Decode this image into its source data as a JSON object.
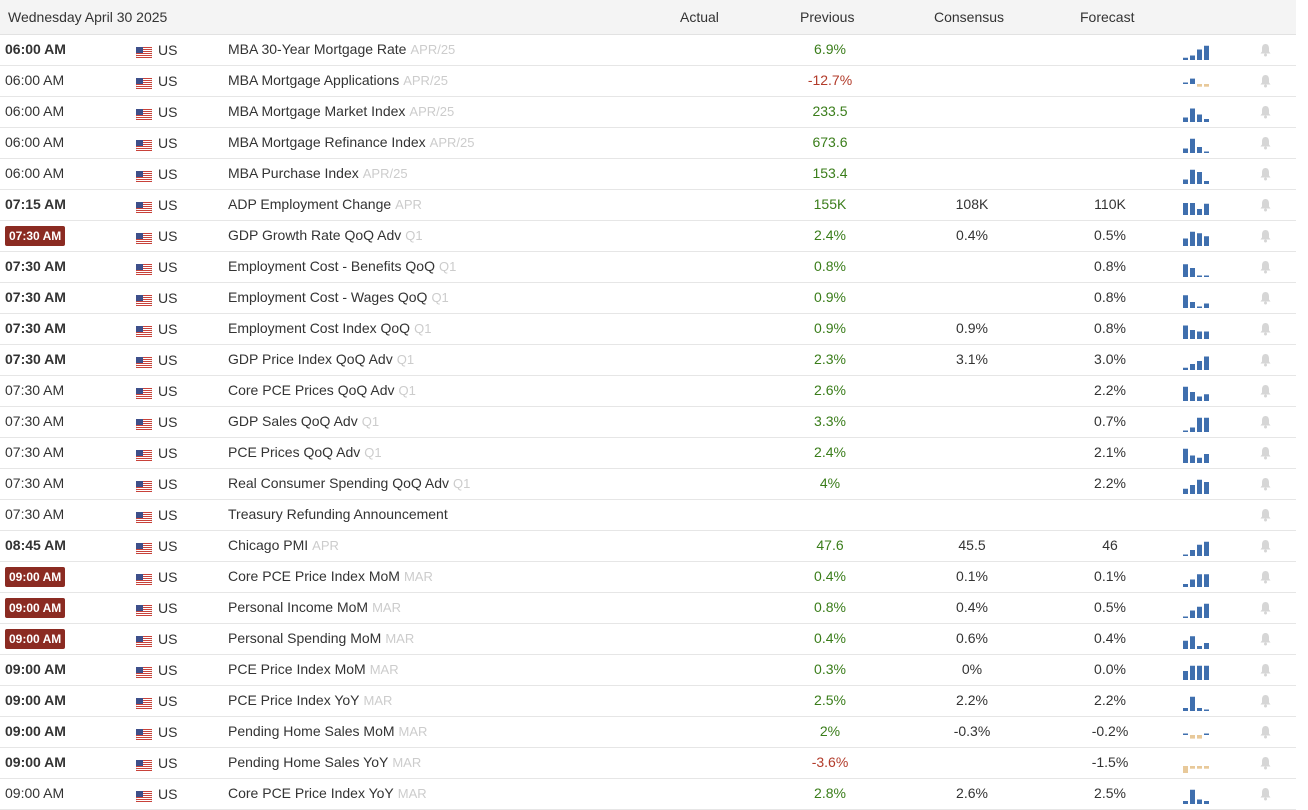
{
  "header": {
    "date": "Wednesday April 30 2025",
    "col_actual": "Actual",
    "col_previous": "Previous",
    "col_consensus": "Consensus",
    "col_forecast": "Forecast"
  },
  "colors": {
    "positive": "#3a7d1a",
    "negative": "#b23b2a",
    "badge": "#8b2b22",
    "spark_blue": "#3f6fae",
    "spark_tan": "#e8c99a"
  },
  "rows": [
    {
      "time": "06:00 AM",
      "style": "bold",
      "country": "US",
      "event": "MBA 30-Year Mortgage Rate",
      "ref": "APR/25",
      "actual": "",
      "previous": "6.9%",
      "prev_dir": "pos",
      "consensus": "",
      "forecast": "",
      "spark": [
        0.15,
        0.3,
        0.7,
        0.95
      ]
    },
    {
      "time": "06:00 AM",
      "style": "normal",
      "country": "US",
      "event": "MBA Mortgage Applications",
      "ref": "APR/25",
      "actual": "",
      "previous": "-12.7%",
      "prev_dir": "neg",
      "consensus": "",
      "forecast": "",
      "spark": [
        0.1,
        0.6,
        -0.3,
        -0.3
      ]
    },
    {
      "time": "06:00 AM",
      "style": "normal",
      "country": "US",
      "event": "MBA Mortgage Market Index",
      "ref": "APR/25",
      "actual": "",
      "previous": "233.5",
      "prev_dir": "pos",
      "consensus": "",
      "forecast": "",
      "spark": [
        0.3,
        0.9,
        0.5,
        0.2
      ]
    },
    {
      "time": "06:00 AM",
      "style": "normal",
      "country": "US",
      "event": "MBA Mortgage Refinance Index",
      "ref": "APR/25",
      "actual": "",
      "previous": "673.6",
      "prev_dir": "pos",
      "consensus": "",
      "forecast": "",
      "spark": [
        0.3,
        0.95,
        0.4,
        0.1
      ]
    },
    {
      "time": "06:00 AM",
      "style": "normal",
      "country": "US",
      "event": "MBA Purchase Index",
      "ref": "APR/25",
      "actual": "",
      "previous": "153.4",
      "prev_dir": "pos",
      "consensus": "",
      "forecast": "",
      "spark": [
        0.3,
        0.95,
        0.8,
        0.2
      ]
    },
    {
      "time": "07:15 AM",
      "style": "bold",
      "country": "US",
      "event": "ADP Employment Change",
      "ref": "APR",
      "actual": "",
      "previous": "155K",
      "prev_dir": "pos",
      "consensus": "108K",
      "forecast": "110K",
      "spark": [
        0.8,
        0.8,
        0.4,
        0.75
      ]
    },
    {
      "time": "07:30 AM",
      "style": "badge",
      "country": "US",
      "event": "GDP Growth Rate QoQ Adv",
      "ref": "Q1",
      "actual": "",
      "previous": "2.4%",
      "prev_dir": "pos",
      "consensus": "0.4%",
      "forecast": "0.5%",
      "spark": [
        0.5,
        0.95,
        0.85,
        0.65
      ]
    },
    {
      "time": "07:30 AM",
      "style": "bold",
      "country": "US",
      "event": "Employment Cost - Benefits QoQ",
      "ref": "Q1",
      "actual": "",
      "previous": "0.8%",
      "prev_dir": "pos",
      "consensus": "",
      "forecast": "0.8%",
      "spark": [
        0.85,
        0.6,
        0.1,
        0.1
      ]
    },
    {
      "time": "07:30 AM",
      "style": "bold",
      "country": "US",
      "event": "Employment Cost - Wages QoQ",
      "ref": "Q1",
      "actual": "",
      "previous": "0.9%",
      "prev_dir": "pos",
      "consensus": "",
      "forecast": "0.8%",
      "spark": [
        0.85,
        0.4,
        0.1,
        0.3
      ]
    },
    {
      "time": "07:30 AM",
      "style": "bold",
      "country": "US",
      "event": "Employment Cost Index QoQ",
      "ref": "Q1",
      "actual": "",
      "previous": "0.9%",
      "prev_dir": "pos",
      "consensus": "0.9%",
      "forecast": "0.8%",
      "spark": [
        0.9,
        0.6,
        0.5,
        0.5
      ]
    },
    {
      "time": "07:30 AM",
      "style": "bold",
      "country": "US",
      "event": "GDP Price Index QoQ Adv",
      "ref": "Q1",
      "actual": "",
      "previous": "2.3%",
      "prev_dir": "pos",
      "consensus": "3.1%",
      "forecast": "3.0%",
      "spark": [
        0.15,
        0.4,
        0.6,
        0.9
      ]
    },
    {
      "time": "07:30 AM",
      "style": "normal",
      "country": "US",
      "event": "Core PCE Prices QoQ Adv",
      "ref": "Q1",
      "actual": "",
      "previous": "2.6%",
      "prev_dir": "pos",
      "consensus": "",
      "forecast": "2.2%",
      "spark": [
        0.95,
        0.6,
        0.3,
        0.45
      ]
    },
    {
      "time": "07:30 AM",
      "style": "normal",
      "country": "US",
      "event": "GDP Sales QoQ Adv",
      "ref": "Q1",
      "actual": "",
      "previous": "3.3%",
      "prev_dir": "pos",
      "consensus": "",
      "forecast": "0.7%",
      "spark": [
        0.1,
        0.3,
        0.95,
        0.95
      ]
    },
    {
      "time": "07:30 AM",
      "style": "normal",
      "country": "US",
      "event": "PCE Prices QoQ Adv",
      "ref": "Q1",
      "actual": "",
      "previous": "2.4%",
      "prev_dir": "pos",
      "consensus": "",
      "forecast": "2.1%",
      "spark": [
        0.95,
        0.5,
        0.35,
        0.6
      ]
    },
    {
      "time": "07:30 AM",
      "style": "normal",
      "country": "US",
      "event": "Real Consumer Spending QoQ Adv",
      "ref": "Q1",
      "actual": "",
      "previous": "4%",
      "prev_dir": "pos",
      "consensus": "",
      "forecast": "2.2%",
      "spark": [
        0.35,
        0.6,
        0.95,
        0.8
      ]
    },
    {
      "time": "07:30 AM",
      "style": "normal",
      "country": "US",
      "event": "Treasury Refunding Announcement",
      "ref": "",
      "actual": "",
      "previous": "",
      "prev_dir": "pos",
      "consensus": "",
      "forecast": "",
      "spark": []
    },
    {
      "time": "08:45 AM",
      "style": "bold",
      "country": "US",
      "event": "Chicago PMI",
      "ref": "APR",
      "actual": "",
      "previous": "47.6",
      "prev_dir": "pos",
      "consensus": "45.5",
      "forecast": "46",
      "spark": [
        0.1,
        0.4,
        0.75,
        0.95
      ]
    },
    {
      "time": "09:00 AM",
      "style": "badge",
      "country": "US",
      "event": "Core PCE Price Index MoM",
      "ref": "MAR",
      "actual": "",
      "previous": "0.4%",
      "prev_dir": "pos",
      "consensus": "0.1%",
      "forecast": "0.1%",
      "spark": [
        0.2,
        0.5,
        0.85,
        0.85
      ]
    },
    {
      "time": "09:00 AM",
      "style": "badge",
      "country": "US",
      "event": "Personal Income MoM",
      "ref": "MAR",
      "actual": "",
      "previous": "0.8%",
      "prev_dir": "pos",
      "consensus": "0.4%",
      "forecast": "0.5%",
      "spark": [
        0.1,
        0.5,
        0.75,
        0.95
      ]
    },
    {
      "time": "09:00 AM",
      "style": "badge",
      "country": "US",
      "event": "Personal Spending MoM",
      "ref": "MAR",
      "actual": "",
      "previous": "0.4%",
      "prev_dir": "pos",
      "consensus": "0.6%",
      "forecast": "0.4%",
      "spark": [
        0.55,
        0.85,
        0.2,
        0.4
      ]
    },
    {
      "time": "09:00 AM",
      "style": "bold",
      "country": "US",
      "event": "PCE Price Index MoM",
      "ref": "MAR",
      "actual": "",
      "previous": "0.3%",
      "prev_dir": "pos",
      "consensus": "0%",
      "forecast": "0.0%",
      "spark": [
        0.6,
        0.95,
        0.95,
        0.95
      ]
    },
    {
      "time": "09:00 AM",
      "style": "bold",
      "country": "US",
      "event": "PCE Price Index YoY",
      "ref": "MAR",
      "actual": "",
      "previous": "2.5%",
      "prev_dir": "pos",
      "consensus": "2.2%",
      "forecast": "2.2%",
      "spark": [
        0.2,
        0.95,
        0.2,
        0.1
      ]
    },
    {
      "time": "09:00 AM",
      "style": "bold",
      "country": "US",
      "event": "Pending Home Sales MoM",
      "ref": "MAR",
      "actual": "",
      "previous": "2%",
      "prev_dir": "pos",
      "consensus": "-0.3%",
      "forecast": "-0.2%",
      "spark": [
        0.15,
        -0.4,
        -0.4,
        0.15
      ]
    },
    {
      "time": "09:00 AM",
      "style": "bold",
      "country": "US",
      "event": "Pending Home Sales YoY",
      "ref": "MAR",
      "actual": "",
      "previous": "-3.6%",
      "prev_dir": "neg",
      "consensus": "",
      "forecast": "-1.5%",
      "spark": [
        -0.8,
        -0.3,
        -0.3,
        -0.3
      ]
    },
    {
      "time": "09:00 AM",
      "style": "normal",
      "country": "US",
      "event": "Core PCE Price Index YoY",
      "ref": "MAR",
      "actual": "",
      "previous": "2.8%",
      "prev_dir": "pos",
      "consensus": "2.6%",
      "forecast": "2.5%",
      "spark": [
        0.2,
        0.95,
        0.3,
        0.2
      ]
    }
  ]
}
